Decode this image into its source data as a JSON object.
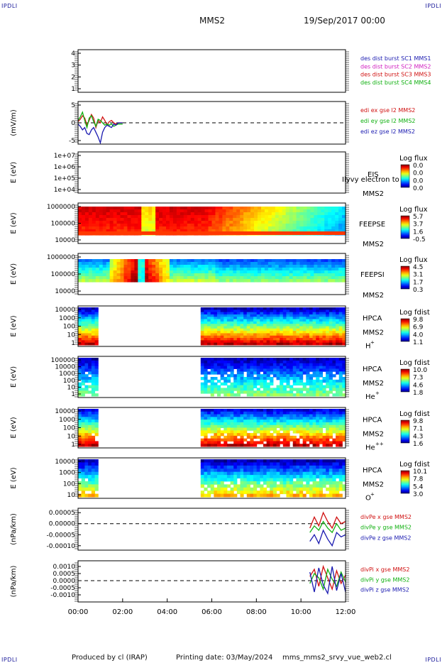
{
  "corners": {
    "tl": "IPDLI",
    "tr": "IPDLI",
    "bl": "IPDLI",
    "br": "IPDLI"
  },
  "header": {
    "title": "MMS2",
    "date": "19/Sep/2017 00:00"
  },
  "footer": {
    "produced": "Produced by cl (IRAP)",
    "printing": "Printing date: 03/May/2024",
    "file": "mms_mms2_srvy_vue_web2.cl"
  },
  "chart_data": [
    {
      "type": "line",
      "name": "des_dist_burst",
      "yticks": [
        "4",
        "3",
        "2",
        "1"
      ],
      "legend": [
        {
          "text": "des dist burst SC1 MMS1",
          "color": "#1a1ab0"
        },
        {
          "text": "des dist burst SC2 MMS2",
          "color": "#d020c0"
        },
        {
          "text": "des dist burst SC3 MMS3",
          "color": "#d01010"
        },
        {
          "text": "des dist burst SC4 MMS4",
          "color": "#10b010"
        }
      ]
    },
    {
      "type": "line",
      "name": "edi_e",
      "ylabel": "(mV/m)",
      "yticks": [
        "5",
        "0",
        "-5"
      ],
      "ylim": [
        -9,
        9
      ],
      "legend": [
        {
          "text": "edi ex gse l2 MMS2",
          "color": "#d01010"
        },
        {
          "text": "edi ey gse l2 MMS2",
          "color": "#10b010"
        },
        {
          "text": "edi ez gse l2 MMS2",
          "color": "#1a1ab0"
        }
      ],
      "x_hours": [
        0.0,
        0.1,
        0.2,
        0.3,
        0.4,
        0.5,
        0.6,
        0.7,
        0.8,
        0.9,
        1.0,
        1.1,
        1.2,
        1.3,
        1.4,
        1.5,
        1.6,
        1.7,
        1.8,
        1.9,
        2.0
      ],
      "series": [
        {
          "name": "ex",
          "values": [
            0.5,
            1.5,
            3.0,
            2.0,
            -1.0,
            1.0,
            3.5,
            2.0,
            -2.0,
            1.0,
            0.0,
            2.5,
            1.0,
            -1.0,
            0.5,
            1.0,
            0.0,
            -0.5,
            0.0,
            0.0,
            0.0
          ]
        },
        {
          "name": "ey",
          "values": [
            1.0,
            2.5,
            4.5,
            1.0,
            -2.0,
            2.0,
            3.0,
            0.5,
            -1.5,
            1.5,
            1.0,
            0.0,
            -1.0,
            -0.5,
            -1.0,
            -0.5,
            -1.5,
            -1.0,
            -0.5,
            -0.5,
            -0.5
          ]
        },
        {
          "name": "ez",
          "values": [
            -0.5,
            -1.5,
            -3.0,
            -2.0,
            -4.5,
            -5.0,
            -3.0,
            -2.0,
            -4.0,
            -6.0,
            -8.5,
            -4.0,
            -2.0,
            -1.0,
            -1.5,
            -2.0,
            -0.5,
            -1.0,
            0.0,
            0.0,
            0.0
          ]
        }
      ]
    },
    {
      "type": "heatmap",
      "name": "EIS",
      "ylabel": "E (eV)",
      "yticks": [
        "1e+07",
        "1e+06",
        "1e+05",
        "1e+04"
      ],
      "right_labels": [
        "EIS",
        "MMS2"
      ],
      "overlay": "Ilyvy electron to",
      "colorbar_title": "Log flux",
      "colorbar_ticks": [
        "0.0",
        "0.0",
        "0.0",
        "0.0"
      ]
    },
    {
      "type": "heatmap",
      "name": "FEEPSE",
      "ylabel": "E (eV)",
      "yticks": [
        "1000000",
        "100000",
        "10000"
      ],
      "right_labels": [
        "FEEPSE",
        "MMS2"
      ],
      "colorbar_title": "Log flux",
      "colorbar_ticks": [
        "5.7",
        "3.7",
        "1.6",
        "-0.5"
      ]
    },
    {
      "type": "heatmap",
      "name": "FEEPSI",
      "ylabel": "E (eV)",
      "yticks": [
        "1000000",
        "100000",
        "10000"
      ],
      "right_labels": [
        "FEEPSI",
        "MMS2"
      ],
      "colorbar_title": "Log flux",
      "colorbar_ticks": [
        "4.5",
        "3.1",
        "1.7",
        "0.3"
      ]
    },
    {
      "type": "heatmap",
      "name": "HPCA_H",
      "ylabel": "E (eV)",
      "yticks": [
        "10000",
        "1000",
        "100",
        "10",
        "1"
      ],
      "right_labels": [
        "HPCA",
        "MMS2",
        "H",
        "+"
      ],
      "colorbar_title": "Log fdist",
      "colorbar_ticks": [
        "9.8",
        "6.9",
        "4.0",
        "1.1"
      ]
    },
    {
      "type": "heatmap",
      "name": "HPCA_He",
      "ylabel": "E (eV)",
      "yticks": [
        "100000",
        "10000",
        "1000",
        "100",
        "10",
        "1"
      ],
      "right_labels": [
        "HPCA",
        "MMS2",
        "He",
        "+"
      ],
      "colorbar_title": "Log fdist",
      "colorbar_ticks": [
        "10.0",
        "7.3",
        "4.6",
        "1.8"
      ]
    },
    {
      "type": "heatmap",
      "name": "HPCA_He2",
      "ylabel": "E (eV)",
      "yticks": [
        "10000",
        "1000",
        "100",
        "10",
        "1"
      ],
      "right_labels": [
        "HPCA",
        "MMS2",
        "He",
        "++"
      ],
      "colorbar_title": "Log fdist",
      "colorbar_ticks": [
        "9.8",
        "7.1",
        "4.3",
        "1.6"
      ]
    },
    {
      "type": "heatmap",
      "name": "HPCA_O",
      "ylabel": "E (eV)",
      "yticks": [
        "10000",
        "1000",
        "100",
        "10"
      ],
      "right_labels": [
        "HPCA",
        "MMS2",
        "O",
        "+"
      ],
      "colorbar_title": "Log fdist",
      "colorbar_ticks": [
        "10.1",
        "7.8",
        "5.4",
        "3.0"
      ]
    },
    {
      "type": "line",
      "name": "divPe",
      "ylabel": "(nPa/km)",
      "yticks": [
        "0.00005",
        "0.00000",
        "-0.00005",
        "-0.00010"
      ],
      "ylim": [
        -0.00012,
        7e-05
      ],
      "legend": [
        {
          "text": "divPe x gse MMS2",
          "color": "#d01010"
        },
        {
          "text": "divPe y gse MMS2",
          "color": "#10b010"
        },
        {
          "text": "divPe z gse MMS2",
          "color": "#1a1ab0"
        }
      ],
      "x_hours": [
        10.4,
        10.6,
        10.8,
        11.0,
        11.2,
        11.4,
        11.6,
        11.8,
        12.0
      ],
      "series": [
        {
          "name": "x",
          "values": [
            -2e-05,
            3e-05,
            -1e-05,
            5e-05,
            1e-05,
            -2e-05,
            3e-05,
            0.0,
            1e-05
          ]
        },
        {
          "name": "y",
          "values": [
            -4e-05,
            -1e-05,
            -3e-05,
            1e-05,
            -2e-05,
            -4e-05,
            0.0,
            -3e-05,
            -2e-05
          ]
        },
        {
          "name": "z",
          "values": [
            -8e-05,
            -5e-05,
            -9e-05,
            -3e-05,
            -7e-05,
            -0.0001,
            -4e-05,
            -6e-05,
            -5e-05
          ]
        }
      ]
    },
    {
      "type": "line",
      "name": "divPi",
      "ylabel": "(nPa/km)",
      "yticks": [
        "0.0010",
        "0.0005",
        "0.0000",
        "-0.0005",
        "-0.0010"
      ],
      "ylim": [
        -0.0015,
        0.0014
      ],
      "legend": [
        {
          "text": "divPi x gse MMS2",
          "color": "#d01010"
        },
        {
          "text": "divPi y gse MMS2",
          "color": "#10b010"
        },
        {
          "text": "divPi z gse MMS2",
          "color": "#1a1ab0"
        }
      ],
      "x_hours": [
        10.4,
        10.6,
        10.8,
        11.0,
        11.2,
        11.4,
        11.6,
        11.8,
        12.0
      ],
      "series": [
        {
          "name": "x",
          "values": [
            0.0003,
            0.0008,
            -0.0004,
            0.001,
            0.0002,
            -0.0006,
            0.0007,
            -0.0002,
            0.0004
          ]
        },
        {
          "name": "y",
          "values": [
            -0.0002,
            0.0005,
            0.0002,
            -0.0006,
            0.0008,
            0.0001,
            -0.0004,
            0.0006,
            -0.0001
          ]
        },
        {
          "name": "z",
          "values": [
            0.0006,
            -0.0008,
            0.0009,
            -0.0003,
            -0.0009,
            0.001,
            -0.0007,
            0.0005,
            -0.0008
          ]
        }
      ]
    }
  ],
  "xaxis": {
    "ticks": [
      "00:00",
      "02:00",
      "04:00",
      "06:00",
      "08:00",
      "10:00",
      "12:00"
    ],
    "range_hours": [
      0,
      12
    ]
  }
}
